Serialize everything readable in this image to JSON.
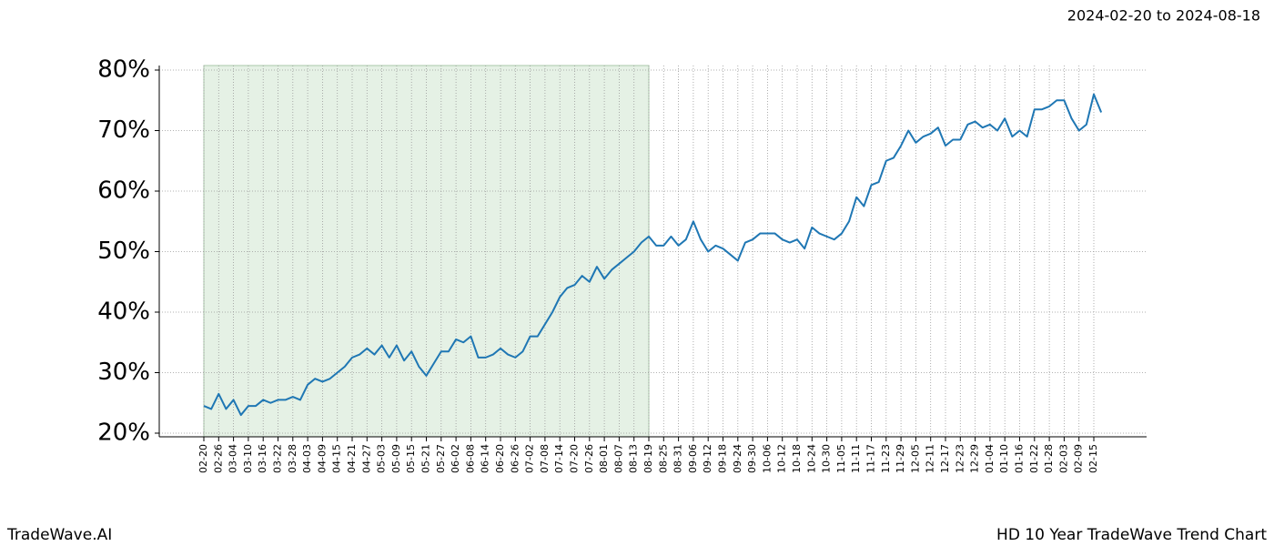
{
  "chart_data": {
    "type": "line",
    "title": "2024-02-20 to 2024-08-18",
    "footer_left": "TradeWave.AI",
    "footer_right": "HD 10 Year TradeWave Trend Chart",
    "categories": [
      "02-20",
      null,
      "02-26",
      null,
      "03-04",
      null,
      "03-10",
      null,
      "03-16",
      null,
      "03-22",
      null,
      "03-28",
      null,
      "04-03",
      null,
      "04-09",
      null,
      "04-15",
      null,
      "04-21",
      null,
      "04-27",
      null,
      "05-03",
      null,
      "05-09",
      null,
      "05-15",
      null,
      "05-21",
      null,
      "05-27",
      null,
      "06-02",
      null,
      "06-08",
      null,
      "06-14",
      null,
      "06-20",
      null,
      "06-26",
      null,
      "07-02",
      null,
      "07-08",
      null,
      "07-14",
      null,
      "07-20",
      null,
      "07-26",
      null,
      "08-01",
      null,
      "08-07",
      null,
      "08-13",
      null,
      "08-19",
      null,
      "08-25",
      null,
      "08-31",
      null,
      "09-06",
      null,
      "09-12",
      null,
      "09-18",
      null,
      "09-24",
      null,
      "09-30",
      null,
      "10-06",
      null,
      "10-12",
      null,
      "10-18",
      null,
      "10-24",
      null,
      "10-30",
      null,
      "11-05",
      null,
      "11-11",
      null,
      "11-17",
      null,
      "11-23",
      null,
      "11-29",
      null,
      "12-05",
      null,
      "12-11",
      null,
      "12-17",
      null,
      "12-23",
      null,
      "12-29",
      null,
      "01-04",
      null,
      "01-10",
      null,
      "01-16",
      null,
      "01-22",
      null,
      "01-28",
      null,
      "02-03",
      null,
      "02-09",
      null,
      "02-15",
      null
    ],
    "series": [
      {
        "color": "#1f77b4",
        "values": [
          24.5,
          24,
          26.5,
          24,
          25.5,
          23,
          24.5,
          24.5,
          25.5,
          25,
          25.5,
          25.5,
          26,
          25.5,
          28,
          29,
          28.5,
          29,
          30,
          31,
          32.5,
          33,
          34,
          33,
          34.5,
          32.5,
          34.5,
          32,
          33.5,
          31,
          29.5,
          31.5,
          33.5,
          33.5,
          35.5,
          35,
          36,
          32.5,
          32.5,
          33,
          34,
          33,
          32.5,
          33.5,
          36,
          36,
          38,
          40,
          42.5,
          44,
          44.5,
          46,
          45,
          47.5,
          45.5,
          47,
          48,
          49,
          50,
          51.5,
          52.5,
          51,
          51,
          52.5,
          51,
          52,
          55,
          52,
          50,
          51,
          50.5,
          49.5,
          48.5,
          51.5,
          52,
          53,
          53,
          53,
          52,
          51.5,
          52,
          50.5,
          54,
          53,
          52.5,
          52,
          53,
          55,
          59,
          57.5,
          61,
          61.5,
          65,
          65.5,
          67.5,
          70,
          68,
          69,
          69.5,
          70.5,
          67.5,
          68.5,
          68.5,
          71,
          71.5,
          70.5,
          71,
          70,
          72,
          69,
          70,
          69,
          73.5,
          73.5,
          74,
          75,
          75,
          72,
          70,
          71,
          76,
          73
        ]
      }
    ],
    "shaded": {
      "start": 0,
      "end": 60,
      "color": "#e5f1e5"
    },
    "ylim": [
      19.4,
      80.75
    ],
    "yticks": [
      {
        "value": 20,
        "label": "20%"
      },
      {
        "value": 30,
        "label": "30%"
      },
      {
        "value": 40,
        "label": "40%"
      },
      {
        "value": 50,
        "label": "50%"
      },
      {
        "value": 60,
        "label": "60%"
      },
      {
        "value": 70,
        "label": "70%"
      },
      {
        "value": 80,
        "label": "80%"
      }
    ],
    "grid": true
  }
}
